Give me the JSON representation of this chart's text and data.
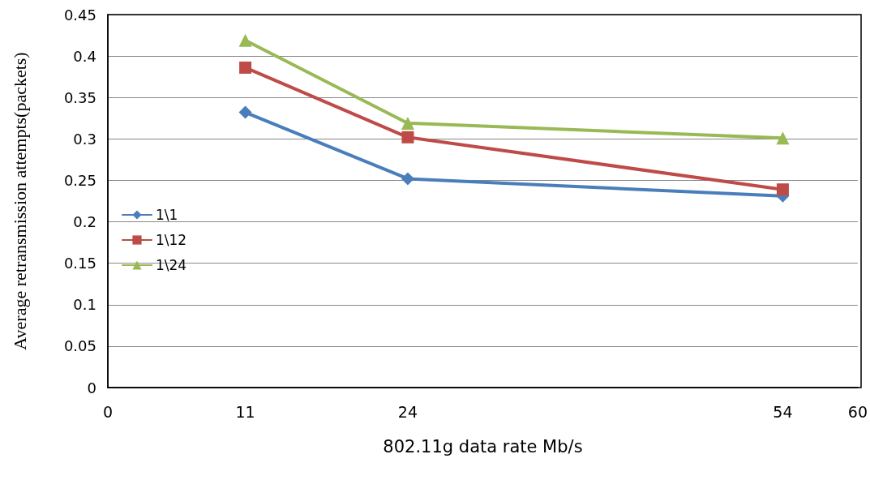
{
  "chart_data": {
    "type": "line",
    "xlabel": "802.11g data rate Mb/s",
    "ylabel": "Average retransmission attempts(packets)",
    "x": [
      11,
      24,
      54
    ],
    "series": [
      {
        "name": "1\\1",
        "color": "#4a7ebb",
        "marker": "diamond",
        "values": [
          0.332,
          0.252,
          0.231
        ]
      },
      {
        "name": "1\\12",
        "color": "#be4b48",
        "marker": "square",
        "values": [
          0.386,
          0.302,
          0.239
        ]
      },
      {
        "name": "1\\24",
        "color": "#98b954",
        "marker": "triangle",
        "values": [
          0.419,
          0.319,
          0.301
        ]
      }
    ],
    "xlim": [
      0,
      60
    ],
    "xticks": [
      0,
      11,
      24,
      54,
      60
    ],
    "ylim": [
      0,
      0.45
    ],
    "yticks": [
      0,
      0.05,
      0.1,
      0.15,
      0.2,
      0.25,
      0.3,
      0.35,
      0.4,
      0.45
    ],
    "grid": "y",
    "legend": "left",
    "line_style": "solid"
  }
}
